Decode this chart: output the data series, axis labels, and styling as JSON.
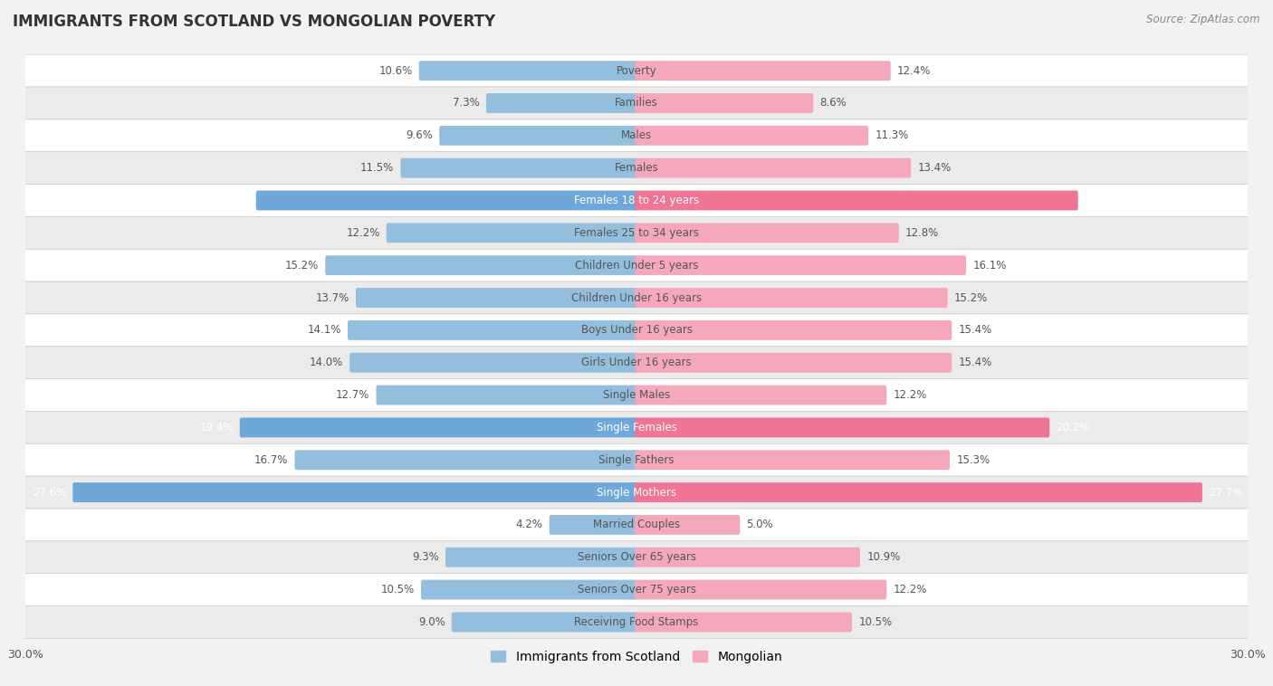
{
  "title": "IMMIGRANTS FROM SCOTLAND VS MONGOLIAN POVERTY",
  "source": "Source: ZipAtlas.com",
  "categories": [
    "Poverty",
    "Families",
    "Males",
    "Females",
    "Females 18 to 24 years",
    "Females 25 to 34 years",
    "Children Under 5 years",
    "Children Under 16 years",
    "Boys Under 16 years",
    "Girls Under 16 years",
    "Single Males",
    "Single Females",
    "Single Fathers",
    "Single Mothers",
    "Married Couples",
    "Seniors Over 65 years",
    "Seniors Over 75 years",
    "Receiving Food Stamps"
  ],
  "scotland_values": [
    10.6,
    7.3,
    9.6,
    11.5,
    18.6,
    12.2,
    15.2,
    13.7,
    14.1,
    14.0,
    12.7,
    19.4,
    16.7,
    27.6,
    4.2,
    9.3,
    10.5,
    9.0
  ],
  "mongolian_values": [
    12.4,
    8.6,
    11.3,
    13.4,
    21.6,
    12.8,
    16.1,
    15.2,
    15.4,
    15.4,
    12.2,
    20.2,
    15.3,
    27.7,
    5.0,
    10.9,
    12.2,
    10.5
  ],
  "scotland_color": "#93bedd",
  "mongolian_color": "#f5a8bc",
  "scotland_highlight_color": "#6fa8d8",
  "mongolian_highlight_color": "#f07595",
  "highlight_rows": [
    4,
    11,
    13
  ],
  "axis_max": 30.0,
  "background_color": "#f2f2f2",
  "row_bg_white": "#ffffff",
  "row_bg_gray": "#ebebeb",
  "bar_height": 0.45,
  "legend_label_scotland": "Immigrants from Scotland",
  "legend_label_mongolian": "Mongolian",
  "value_label_dark": "#555555",
  "value_label_white": "#ffffff",
  "category_label_dark": "#555555",
  "category_label_white": "#ffffff"
}
